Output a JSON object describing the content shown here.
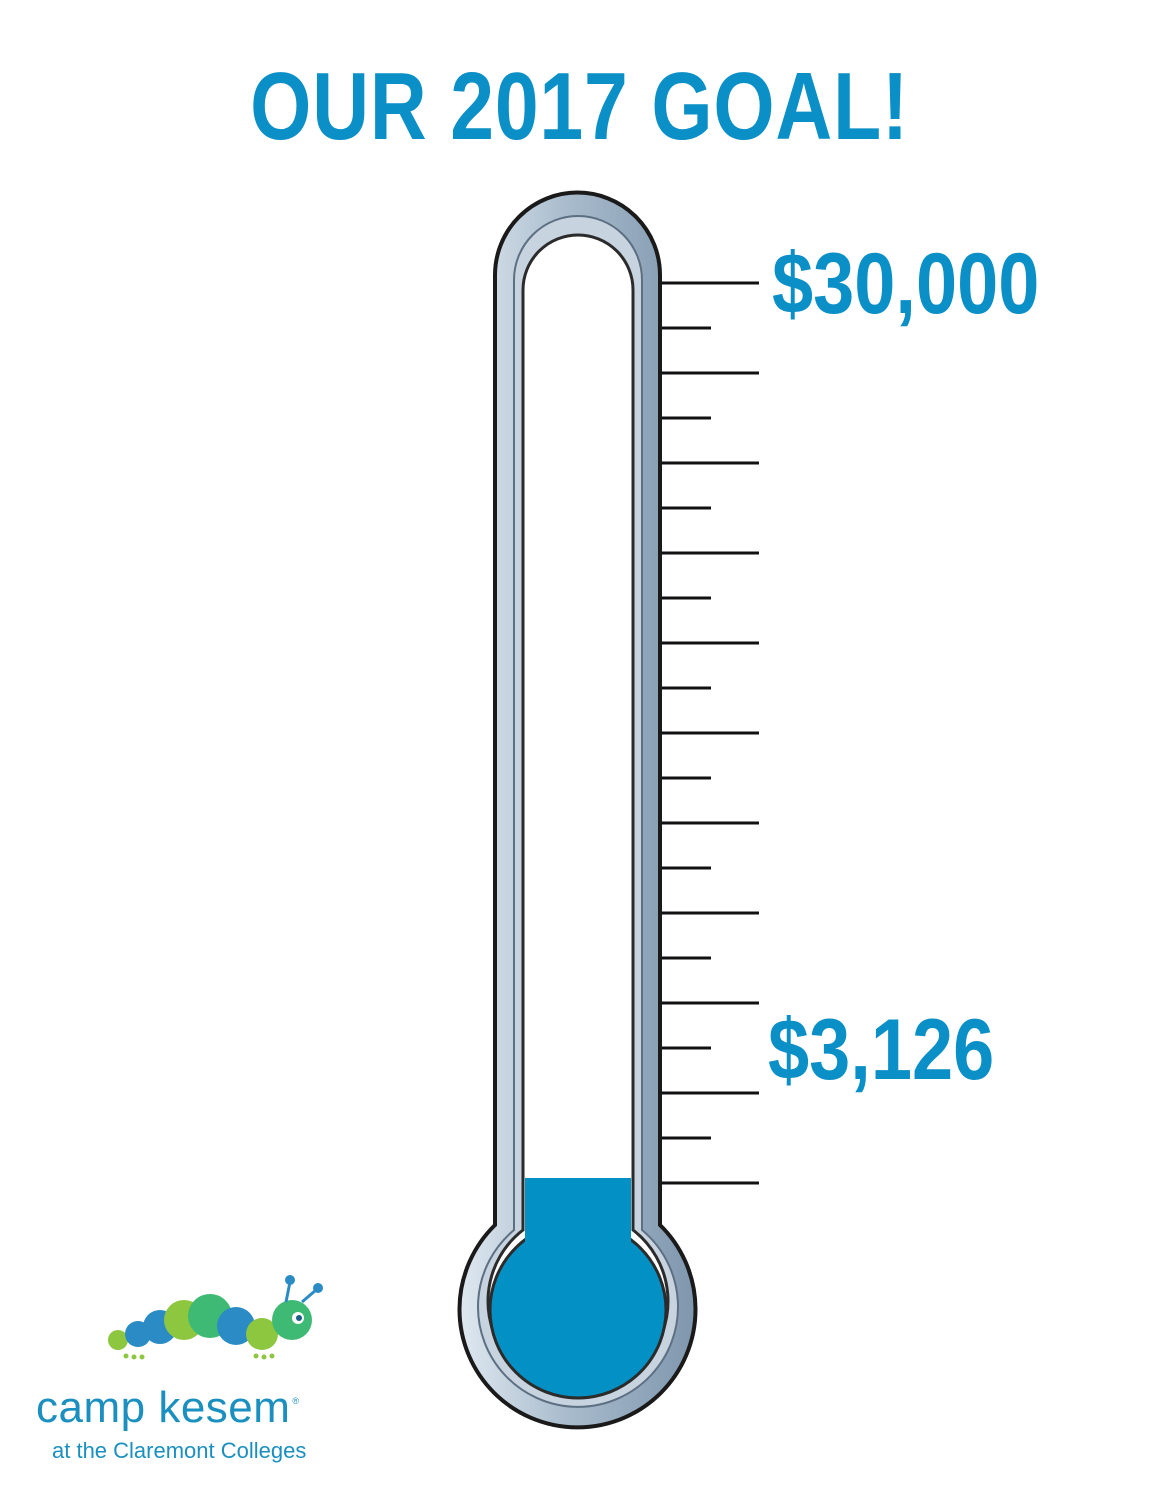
{
  "title": "OUR 2017 GOAL!",
  "goal": {
    "label": "$30,000",
    "value": 30000
  },
  "raised": {
    "label": "$3,126",
    "value": 3126,
    "fraction_of_goal": 0.104
  },
  "colors": {
    "accent": "#0a8fc6",
    "fill": "#0391c5",
    "tube_outline": "#1a1a1a",
    "tube_metal": "#b7c6d4",
    "logo_green": "#8dc63f",
    "logo_blue": "#2a8bc5"
  },
  "logo": {
    "name": "camp kesem",
    "subtitle": "at the Claremont Colleges",
    "mascot": "caterpillar-icon"
  }
}
